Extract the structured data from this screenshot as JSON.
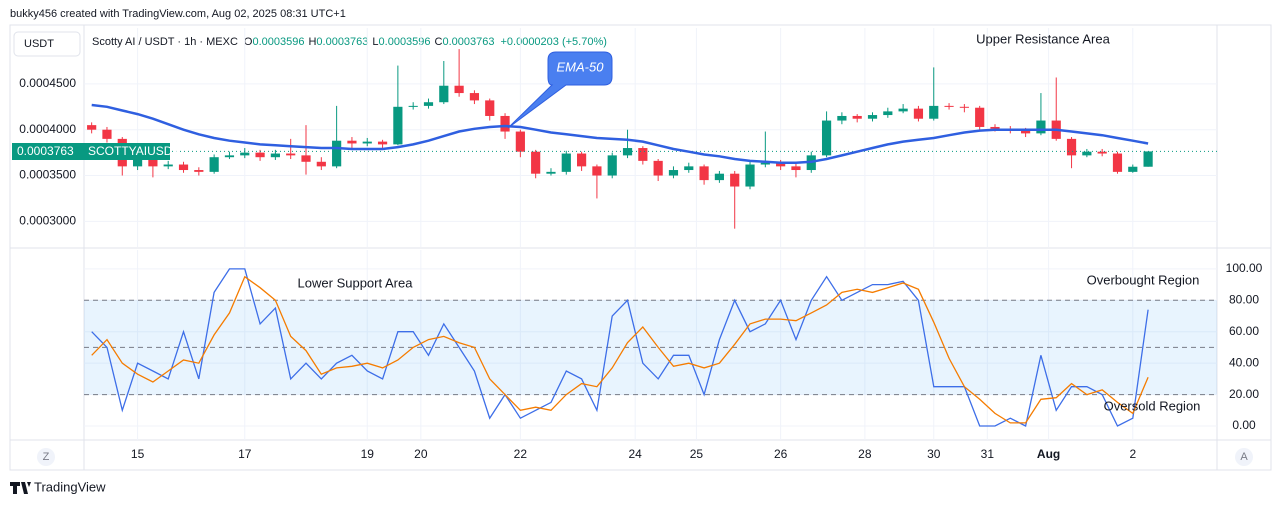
{
  "header": {
    "credit": "bukky456 created with TradingView.com, Aug 02, 2025 08:31 UTC+1",
    "currency": "USDT",
    "symbol": "Scotty AI / USDT · 1h · MEXC",
    "ohlc": [
      {
        "key": "O",
        "value": "0.0003596"
      },
      {
        "key": "H",
        "value": "0.0003763"
      },
      {
        "key": "L",
        "value": "0.0003596"
      },
      {
        "key": "C",
        "value": "0.0003763"
      }
    ],
    "change": "+0.0000203 (+5.70%)",
    "price_tag": "0.0003763",
    "ticker_tag": "SCOTTYAIUSDT"
  },
  "footer": {
    "brand": "TradingView",
    "left_button": "Z",
    "right_button": "A"
  },
  "chart_data": [
    {
      "type": "candlestick",
      "up_color": "#089981",
      "down_color": "#f23645",
      "open": [
        0.000405,
        0.0004,
        0.00039,
        0.00036,
        0.000368,
        0.00036,
        0.000362,
        0.000356,
        0.000354,
        0.00037,
        0.000372,
        0.000375,
        0.00037,
        0.000374,
        0.000372,
        0.000365,
        0.00036,
        0.000388,
        0.000385,
        0.000387,
        0.000384,
        0.000425,
        0.000426,
        0.00043,
        0.000448,
        0.00044,
        0.000432,
        0.000415,
        0.000398,
        0.000376,
        0.000352,
        0.000354,
        0.000374,
        0.00036,
        0.00035,
        0.000372,
        0.00038,
        0.000366,
        0.00035,
        0.000356,
        0.00036,
        0.000345,
        0.000352,
        0.000338,
        0.000362,
        0.000364,
        0.00036,
        0.000356,
        0.000372,
        0.00041,
        0.000415,
        0.000412,
        0.000416,
        0.00042,
        0.000423,
        0.000412,
        0.000426,
        0.000425,
        0.000424,
        0.000403,
        0.000401,
        0.000399,
        0.000396,
        0.00041,
        0.00039,
        0.000372,
        0.000376,
        0.000374,
        0.000354,
        0.0003596
      ],
      "high": [
        0.000408,
        0.000403,
        0.000392,
        0.000372,
        0.000371,
        0.000366,
        0.000365,
        0.000359,
        0.000373,
        0.000376,
        0.00038,
        0.000378,
        0.000378,
        0.00039,
        0.000405,
        0.00037,
        0.000426,
        0.000392,
        0.000391,
        0.000389,
        0.00047,
        0.00043,
        0.000434,
        0.000475,
        0.000488,
        0.000443,
        0.000434,
        0.000418,
        0.0004,
        0.000378,
        0.000358,
        0.000377,
        0.000376,
        0.000362,
        0.000375,
        0.0004,
        0.000382,
        0.000368,
        0.00036,
        0.000364,
        0.000362,
        0.000355,
        0.000355,
        0.000366,
        0.000398,
        0.000367,
        0.000363,
        0.000376,
        0.00042,
        0.000419,
        0.000417,
        0.000419,
        0.000424,
        0.000428,
        0.000426,
        0.000468,
        0.000429,
        0.000428,
        0.000426,
        0.000406,
        0.000404,
        0.000402,
        0.00044,
        0.000457,
        0.000392,
        0.000379,
        0.000379,
        0.000376,
        0.000362,
        0.0003763
      ],
      "low": [
        0.000396,
        0.000386,
        0.00035,
        0.000356,
        0.000348,
        0.000357,
        0.000353,
        0.00035,
        0.000352,
        0.000368,
        0.000369,
        0.000366,
        0.000367,
        0.000368,
        0.000351,
        0.000356,
        0.000358,
        0.00038,
        0.000382,
        0.00038,
        0.000383,
        0.000422,
        0.000423,
        0.000428,
        0.000436,
        0.000428,
        0.00041,
        0.00039,
        0.00037,
        0.000347,
        0.00035,
        0.000351,
        0.000355,
        0.000325,
        0.000347,
        0.000369,
        0.000362,
        0.000344,
        0.000347,
        0.000353,
        0.00034,
        0.000342,
        0.000292,
        0.000335,
        0.000359,
        0.000356,
        0.000348,
        0.000353,
        0.00037,
        0.000406,
        0.000408,
        0.000409,
        0.000413,
        0.000418,
        0.000409,
        0.00041,
        0.000422,
        0.000419,
        0.000399,
        0.000398,
        0.000396,
        0.000392,
        0.000394,
        0.000388,
        0.000358,
        0.00037,
        0.000371,
        0.000352,
        0.000353,
        0.0003596
      ],
      "close": [
        0.0004,
        0.00039,
        0.00036,
        0.000368,
        0.00036,
        0.000362,
        0.000356,
        0.000354,
        0.00037,
        0.000372,
        0.000375,
        0.00037,
        0.000374,
        0.000372,
        0.000365,
        0.00036,
        0.000388,
        0.000385,
        0.000387,
        0.000384,
        0.000425,
        0.000426,
        0.00043,
        0.000448,
        0.00044,
        0.000432,
        0.000415,
        0.000398,
        0.000376,
        0.000352,
        0.000354,
        0.000374,
        0.00036,
        0.00035,
        0.000372,
        0.00038,
        0.000366,
        0.00035,
        0.000356,
        0.00036,
        0.000345,
        0.000352,
        0.000338,
        0.000362,
        0.000364,
        0.00036,
        0.000356,
        0.000372,
        0.00041,
        0.000415,
        0.000412,
        0.000416,
        0.00042,
        0.000423,
        0.000412,
        0.000426,
        0.000425,
        0.000424,
        0.000403,
        0.000401,
        0.000399,
        0.000396,
        0.00041,
        0.00039,
        0.000372,
        0.000376,
        0.000374,
        0.000354,
        0.0003596,
        0.0003763
      ],
      "series": [
        {
          "color": "#2f5fe0",
          "values": [
            0.000427,
            0.000425,
            0.000421,
            0.000417,
            0.000412,
            0.000406,
            0.0004,
            0.000395,
            0.000391,
            0.000388,
            0.000386,
            0.000384,
            0.000383,
            0.000382,
            0.000381,
            0.00038,
            0.00038,
            0.000379,
            0.000379,
            0.000379,
            0.000381,
            0.000384,
            0.000388,
            0.000393,
            0.000398,
            0.000401,
            0.000403,
            0.000404,
            0.000403,
            0.0004,
            0.000397,
            0.000395,
            0.000393,
            0.000391,
            0.00039,
            0.000389,
            0.000387,
            0.000383,
            0.000379,
            0.000376,
            0.000373,
            0.000371,
            0.000368,
            0.000366,
            0.000365,
            0.000364,
            0.000364,
            0.000365,
            0.000368,
            0.000372,
            0.000376,
            0.00038,
            0.000384,
            0.000387,
            0.000389,
            0.000391,
            0.000394,
            0.000397,
            0.000399,
            0.0004,
            0.0004,
            0.0004,
            0.0004,
            0.0004,
            0.000398,
            0.000396,
            0.000394,
            0.000391,
            0.000388,
            0.000385
          ]
        }
      ],
      "xlim": [
        -0.5,
        73.5
      ],
      "ylim": [
        0.000272,
        0.000511
      ],
      "yticks": [
        {
          "value": 0.0003,
          "label": "0.0003000"
        },
        {
          "value": 0.00035,
          "label": "0.0003500"
        },
        {
          "value": 0.0004,
          "label": "0.0004000"
        },
        {
          "value": 0.00045,
          "label": "0.0004500"
        }
      ],
      "xticks": [
        {
          "value": 3,
          "label": "15"
        },
        {
          "value": 10,
          "label": "17"
        },
        {
          "value": 18,
          "label": "19"
        },
        {
          "value": 21.5,
          "label": "20"
        },
        {
          "value": 28,
          "label": "22"
        },
        {
          "value": 35.5,
          "label": "24"
        },
        {
          "value": 39.5,
          "label": "25"
        },
        {
          "value": 45,
          "label": "26"
        },
        {
          "value": 50.5,
          "label": "28"
        },
        {
          "value": 55,
          "label": "30"
        },
        {
          "value": 58.5,
          "label": "31"
        },
        {
          "value": 62.5,
          "label": "Aug"
        },
        {
          "value": 68,
          "label": "2"
        }
      ],
      "grid": true,
      "annotations": [
        "EMA-50",
        "Upper Resistance Area"
      ]
    },
    {
      "type": "line",
      "xlim": [
        -0.5,
        73.5
      ],
      "ylim": [
        -8.9,
        112
      ],
      "yticks": [
        {
          "value": 0,
          "label": "0.00"
        },
        {
          "value": 20,
          "label": "20.00"
        },
        {
          "value": 40,
          "label": "40.00"
        },
        {
          "value": 60,
          "label": "60.00"
        },
        {
          "value": 80,
          "label": "80.00"
        },
        {
          "value": 100,
          "label": "100.00"
        }
      ],
      "levels": [
        80,
        50,
        20
      ],
      "band_color": "#2196f3",
      "series": [
        {
          "color": "#3d6ee8",
          "values": [
            60,
            50,
            10,
            40,
            35,
            30,
            60,
            30,
            85,
            100,
            100,
            65,
            75,
            30,
            40,
            30,
            40,
            45,
            35,
            30,
            60,
            60,
            45,
            65,
            50,
            35,
            5,
            20,
            5,
            10,
            15,
            35,
            30,
            10,
            70,
            80,
            40,
            30,
            45,
            45,
            20,
            55,
            80,
            60,
            65,
            80,
            55,
            80,
            95,
            80,
            85,
            90,
            90,
            92,
            80,
            25,
            25,
            25,
            0,
            0,
            5,
            0,
            45,
            10,
            25,
            25,
            20,
            0,
            5,
            74
          ]
        },
        {
          "color": "#f57c00",
          "values": [
            45,
            55,
            40,
            33,
            28,
            35,
            42,
            40,
            58,
            72,
            95,
            88,
            80,
            57,
            48,
            33,
            37,
            38,
            40,
            37,
            42,
            50,
            55,
            57,
            53,
            50,
            30,
            20,
            10,
            12,
            10,
            20,
            27,
            25,
            37,
            53,
            63,
            50,
            38,
            40,
            37,
            40,
            52,
            65,
            68,
            68,
            67,
            72,
            77,
            85,
            87,
            85,
            88,
            91,
            87,
            66,
            43,
            25,
            17,
            8,
            2,
            2,
            17,
            18,
            27,
            20,
            23,
            15,
            8,
            31
          ]
        }
      ],
      "annotations": [
        "Lower Support Area",
        "Overbought Region",
        "Oversold Region"
      ]
    }
  ]
}
